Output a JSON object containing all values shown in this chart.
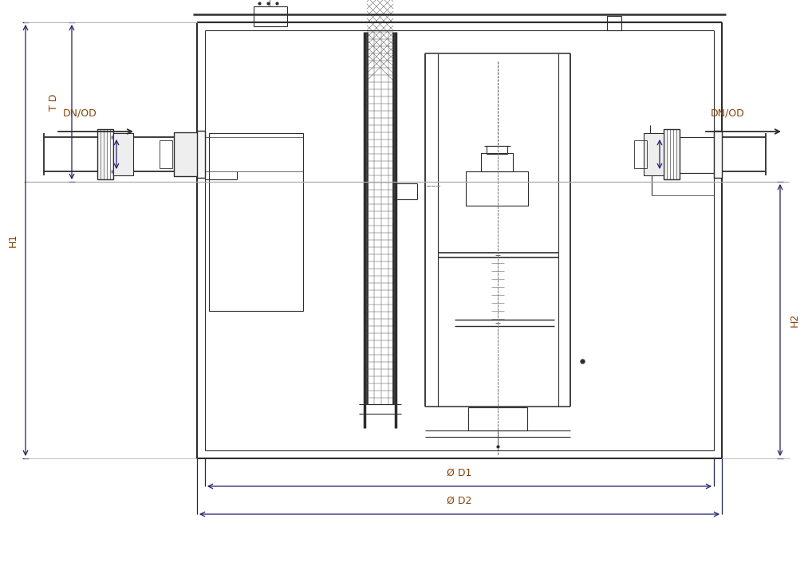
{
  "bg_color": "#ffffff",
  "line_color": "#2d2d2d",
  "dim_color": "#1f1f6e",
  "dim_label_color": "#8B4000",
  "figsize": [
    10.18,
    7.05
  ],
  "dpi": 100,
  "labels": {
    "TD": "T D",
    "H1": "H1",
    "H2": "H2",
    "DN_OD_left": "DN/OD",
    "DN_OD_right": "DN/OD",
    "D1": "Ø D1",
    "D2": "Ø D2"
  }
}
